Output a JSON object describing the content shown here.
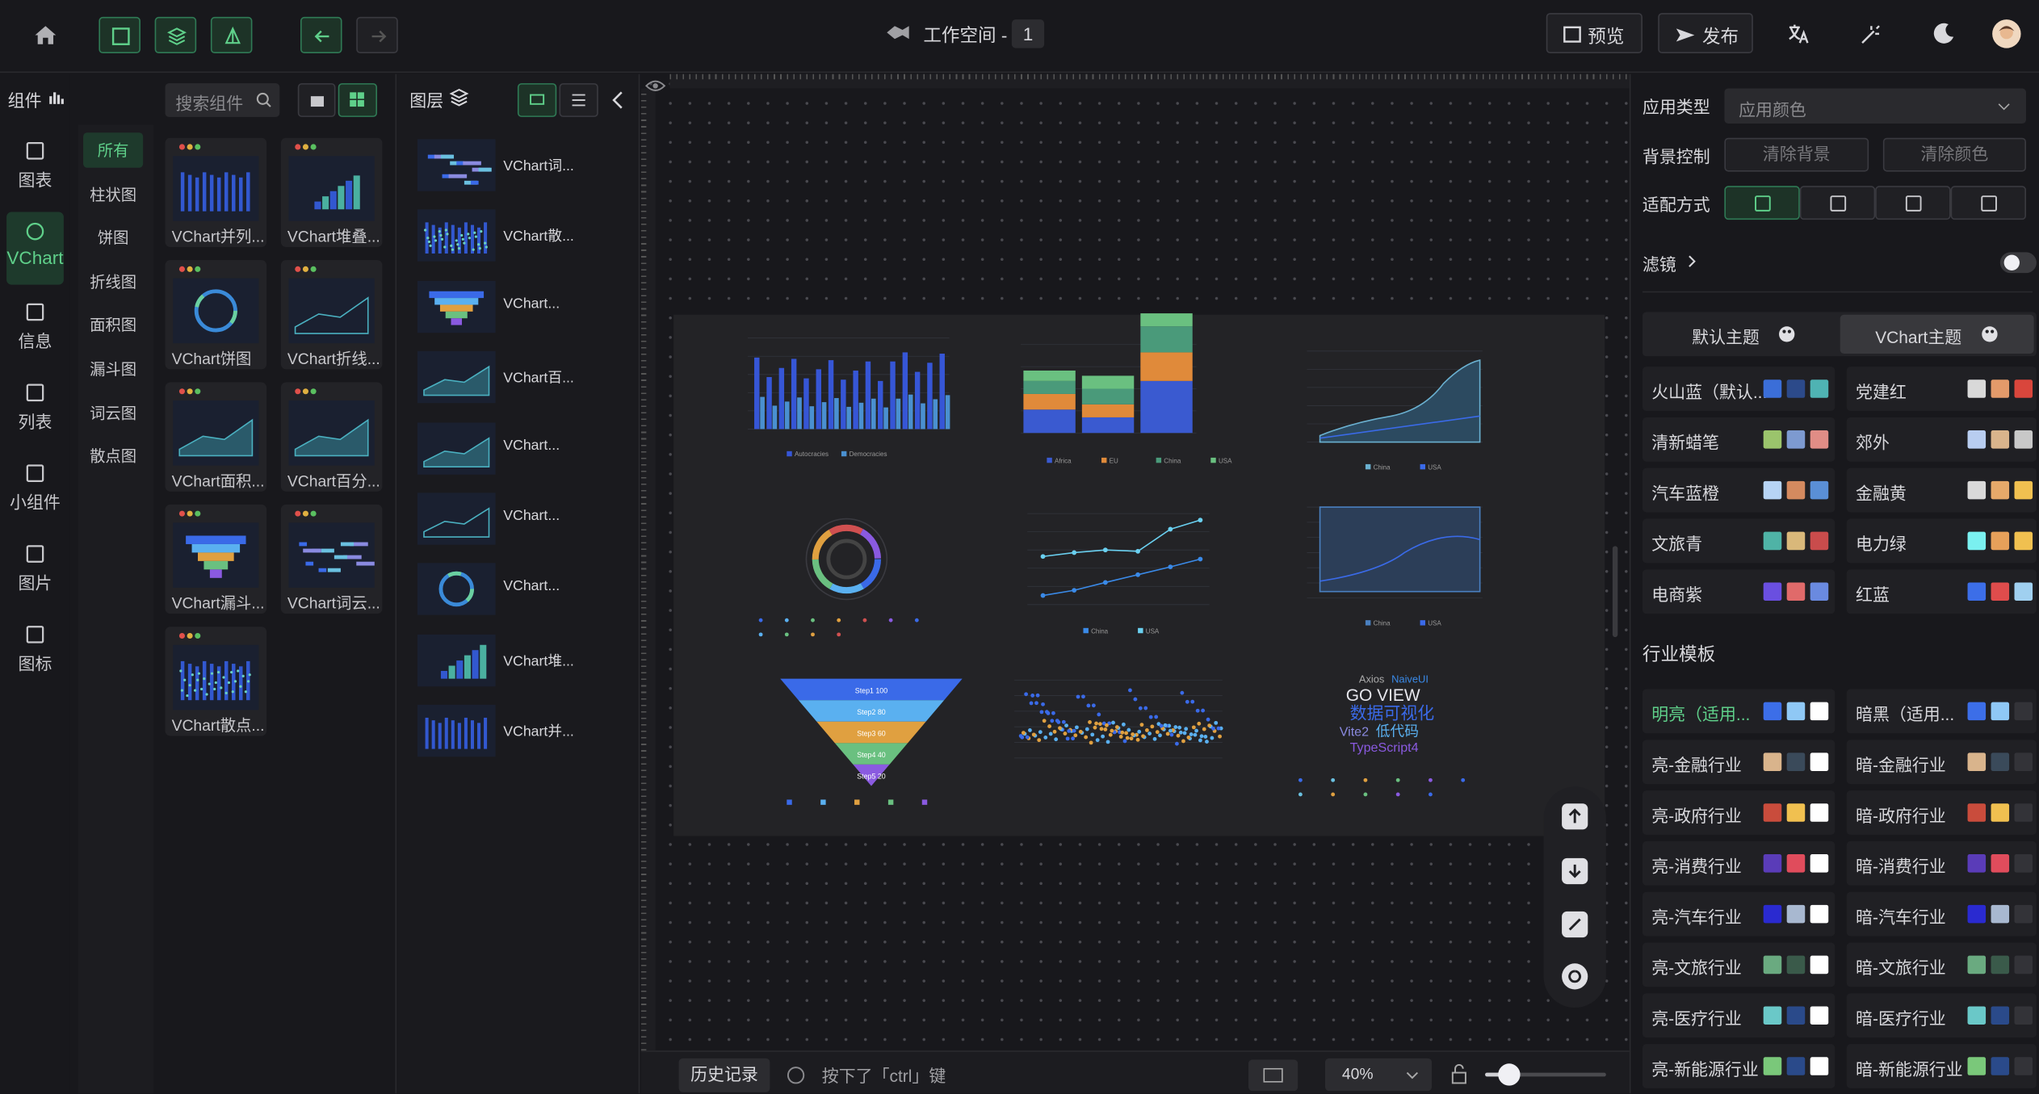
{
  "header": {
    "workspace_label": "工作空间 -",
    "workspace_number": "1",
    "preview": "预览",
    "publish": "发布"
  },
  "sidebar": {
    "nav": [
      "图表",
      "VChart",
      "信息",
      "列表",
      "小组件",
      "图片",
      "图标"
    ]
  },
  "components": {
    "title": "组件",
    "search_placeholder": "搜索组件",
    "categories": [
      "所有",
      "柱状图",
      "饼图",
      "折线图",
      "面积图",
      "漏斗图",
      "词云图",
      "散点图"
    ],
    "items": [
      "VChart并列...",
      "VChart堆叠...",
      "VChart饼图",
      "VChart折线...",
      "VChart面积...",
      "VChart百分...",
      "VChart漏斗...",
      "VChart词云...",
      "VChart散点..."
    ]
  },
  "layers": {
    "title": "图层",
    "items": [
      "VChart词...",
      "VChart散...",
      "VChart...",
      "VChart百...",
      "VChart...",
      "VChart...",
      "VChart...",
      "VChart堆...",
      "VChart并..."
    ]
  },
  "canvas": {
    "bar_legend": [
      "Autocracies",
      "Democracies"
    ],
    "stack_legend": [
      "Africa",
      "EU",
      "China",
      "USA"
    ],
    "area_legend": [
      "China",
      "USA"
    ],
    "funnel_labels": [
      "Step1 100",
      "Step2 80",
      "Step3 60",
      "Step4 40",
      "Step5 20"
    ],
    "wordcloud": [
      "Axios",
      "NaiveUI",
      "GO VIEW",
      "数据可视化",
      "Vite2",
      "低代码",
      "TypeScript4"
    ]
  },
  "footer": {
    "history": "历史记录",
    "hint": "按下了「ctrl」键",
    "zoom": "40%"
  },
  "settings": {
    "app_type_label": "应用类型",
    "app_type_value": "应用颜色",
    "background_label": "背景控制",
    "clear_background": "清除背景",
    "clear_color": "清除颜色",
    "fit_label": "适配方式",
    "filter_label": "滤镜",
    "tabs": [
      "默认主题",
      "VChart主题"
    ],
    "themes": [
      {
        "name": "火山蓝（默认...",
        "colors": [
          "#3b6ed8",
          "#2c4a8a",
          "#4fb3b3"
        ]
      },
      {
        "name": "党建红",
        "colors": [
          "#d9d9d9",
          "#e39a6a",
          "#d9463c"
        ]
      },
      {
        "name": "清新蜡笔",
        "colors": [
          "#9bc46c",
          "#7d9ad0",
          "#e08d86"
        ]
      },
      {
        "name": "郊外",
        "colors": [
          "#b8cdf0",
          "#d9b48c",
          "#c8c8c8"
        ]
      },
      {
        "name": "汽车蓝橙",
        "colors": [
          "#b7d4f5",
          "#d48a5f",
          "#5a8fd6"
        ]
      },
      {
        "name": "金融黄",
        "colors": [
          "#d9d9d9",
          "#e6a96a",
          "#f0c050"
        ]
      },
      {
        "name": "文旅青",
        "colors": [
          "#4fb3a6",
          "#d9b87a",
          "#c94c4c"
        ]
      },
      {
        "name": "电力绿",
        "colors": [
          "#7af0f0",
          "#e6a05a",
          "#f0c050"
        ]
      },
      {
        "name": "电商紫",
        "colors": [
          "#6a4fe0",
          "#e06a6a",
          "#6a8ae0"
        ]
      },
      {
        "name": "红蓝",
        "colors": [
          "#3c6ee8",
          "#e04c4c",
          "#a0d0f0"
        ]
      }
    ],
    "industry_title": "行业模板",
    "industry": [
      {
        "name": "明亮（适用...",
        "colors": [
          "#3c6ee8",
          "#8fc8f5",
          "#ffffff"
        ]
      },
      {
        "name": "暗黑（适用...",
        "colors": [
          "#3c6ee8",
          "#8fc8f5",
          "#333338"
        ]
      },
      {
        "name": "亮-金融行业",
        "colors": [
          "#d9b48c",
          "#3a4a5a",
          "#ffffff"
        ]
      },
      {
        "name": "暗-金融行业",
        "colors": [
          "#d9b48c",
          "#3a4a5a",
          "#333338"
        ]
      },
      {
        "name": "亮-政府行业",
        "colors": [
          "#c94c3c",
          "#f0c050",
          "#ffffff"
        ]
      },
      {
        "name": "暗-政府行业",
        "colors": [
          "#c94c3c",
          "#f0c050",
          "#333338"
        ]
      },
      {
        "name": "亮-消费行业",
        "colors": [
          "#5a3cb8",
          "#e04c5c",
          "#ffffff"
        ]
      },
      {
        "name": "暗-消费行业",
        "colors": [
          "#5a3cb8",
          "#e04c5c",
          "#333338"
        ]
      },
      {
        "name": "亮-汽车行业",
        "colors": [
          "#2a2ad0",
          "#a8b8d0",
          "#ffffff"
        ]
      },
      {
        "name": "暗-汽车行业",
        "colors": [
          "#2a2ad0",
          "#a8b8d0",
          "#333338"
        ]
      },
      {
        "name": "亮-文旅行业",
        "colors": [
          "#6aaa80",
          "#3a5a4a",
          "#ffffff"
        ]
      },
      {
        "name": "暗-文旅行业",
        "colors": [
          "#6aaa80",
          "#3a5a4a",
          "#333338"
        ]
      },
      {
        "name": "亮-医疗行业",
        "colors": [
          "#6ac8c8",
          "#2a4a8a",
          "#ffffff"
        ]
      },
      {
        "name": "暗-医疗行业",
        "colors": [
          "#6ac8c8",
          "#2a4a8a",
          "#333338"
        ]
      },
      {
        "name": "亮-新能源行业",
        "colors": [
          "#7ac87a",
          "#2a4a8a",
          "#ffffff"
        ]
      },
      {
        "name": "暗-新能源行业",
        "colors": [
          "#7ac87a",
          "#2a4a8a",
          "#333338"
        ]
      }
    ]
  }
}
